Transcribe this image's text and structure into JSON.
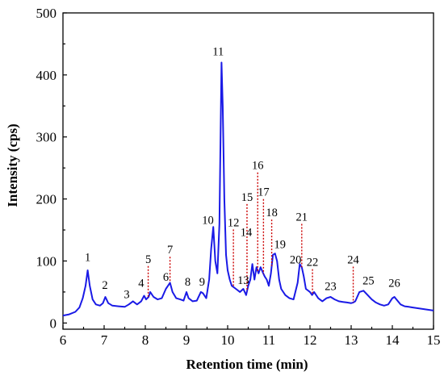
{
  "chart_data": {
    "type": "line",
    "xlabel": "Retention time (min)",
    "ylabel": "Intensity (cps)",
    "xlim": [
      6,
      15
    ],
    "ylim": [
      -10,
      500
    ],
    "x_ticks": [
      "6",
      "7",
      "8",
      "9",
      "10",
      "11",
      "12",
      "13",
      "14",
      "15"
    ],
    "y_ticks": [
      "0",
      "100",
      "200",
      "300",
      "400",
      "500"
    ],
    "series_color": "#1a1ae6",
    "guide_color": "#cc0000",
    "series": [
      {
        "x": [
          6.0,
          6.15,
          6.3,
          6.4,
          6.48,
          6.55,
          6.6,
          6.65,
          6.72,
          6.8,
          6.9,
          6.97,
          7.03,
          7.1,
          7.2,
          7.35,
          7.5,
          7.6,
          7.7,
          7.8,
          7.9,
          7.97,
          8.02,
          8.08,
          8.12,
          8.2,
          8.3,
          8.4,
          8.5,
          8.55,
          8.6,
          8.66,
          8.75,
          8.85,
          8.93,
          9.0,
          9.05,
          9.15,
          9.25,
          9.35,
          9.4,
          9.48,
          9.55,
          9.6,
          9.65,
          9.7,
          9.75,
          9.8,
          9.85,
          9.88,
          9.92,
          9.96,
          10.0,
          10.05,
          10.1,
          10.2,
          10.3,
          10.38,
          10.45,
          10.5,
          10.55,
          10.6,
          10.65,
          10.7,
          10.75,
          10.8,
          10.85,
          10.9,
          10.95,
          11.0,
          11.05,
          11.1,
          11.15,
          11.2,
          11.25,
          11.3,
          11.4,
          11.5,
          11.6,
          11.7,
          11.75,
          11.8,
          11.85,
          11.9,
          12.0,
          12.05,
          12.1,
          12.2,
          12.3,
          12.4,
          12.5,
          12.6,
          12.7,
          12.8,
          12.9,
          13.0,
          13.05,
          13.1,
          13.2,
          13.3,
          13.4,
          13.5,
          13.6,
          13.7,
          13.8,
          13.9,
          14.0,
          14.05,
          14.1,
          14.2,
          14.3,
          14.4,
          14.5,
          14.6,
          14.7,
          14.8,
          15.0
        ],
        "y": [
          12,
          14,
          18,
          25,
          40,
          60,
          85,
          60,
          38,
          30,
          28,
          32,
          42,
          32,
          28,
          27,
          26,
          30,
          35,
          30,
          35,
          44,
          38,
          42,
          50,
          42,
          38,
          40,
          55,
          60,
          65,
          50,
          40,
          38,
          36,
          50,
          40,
          35,
          36,
          50,
          48,
          40,
          70,
          120,
          155,
          100,
          80,
          160,
          420,
          350,
          200,
          110,
          85,
          70,
          60,
          55,
          50,
          55,
          45,
          60,
          70,
          95,
          70,
          90,
          80,
          90,
          82,
          75,
          70,
          60,
          80,
          110,
          112,
          100,
          70,
          55,
          45,
          40,
          38,
          65,
          95,
          90,
          75,
          55,
          50,
          45,
          50,
          40,
          35,
          40,
          42,
          38,
          35,
          34,
          33,
          32,
          33,
          35,
          50,
          52,
          45,
          38,
          33,
          30,
          28,
          30,
          40,
          42,
          38,
          30,
          27,
          26,
          25,
          24,
          23,
          22,
          20
        ]
      }
    ],
    "peaks": [
      {
        "label": "1",
        "x": 6.6,
        "label_y": 100,
        "guide": false
      },
      {
        "label": "2",
        "x": 7.02,
        "label_y": 55,
        "guide": false
      },
      {
        "label": "3",
        "x": 7.55,
        "label_y": 40,
        "guide": false
      },
      {
        "label": "4",
        "x": 7.9,
        "label_y": 58,
        "guide": false
      },
      {
        "label": "5",
        "x": 8.07,
        "label_y": 97,
        "guide": true
      },
      {
        "label": "6",
        "x": 8.5,
        "label_y": 68,
        "guide": false
      },
      {
        "label": "7",
        "x": 8.6,
        "label_y": 112,
        "guide": true
      },
      {
        "label": "8",
        "x": 9.03,
        "label_y": 60,
        "guide": false
      },
      {
        "label": "9",
        "x": 9.38,
        "label_y": 60,
        "guide": false
      },
      {
        "label": "10",
        "x": 9.52,
        "label_y": 160,
        "guide": false
      },
      {
        "label": "11",
        "x": 9.77,
        "label_y": 432,
        "guide": false
      },
      {
        "label": "12",
        "x": 10.14,
        "label_y": 156,
        "guide": true
      },
      {
        "label": "13",
        "x": 10.38,
        "label_y": 63,
        "guide": false
      },
      {
        "label": "14",
        "x": 10.45,
        "label_y": 140,
        "guide": false
      },
      {
        "label": "15",
        "x": 10.47,
        "label_y": 197,
        "guide": true
      },
      {
        "label": "16",
        "x": 10.73,
        "label_y": 248,
        "guide": true
      },
      {
        "label": "17",
        "x": 10.87,
        "label_y": 205,
        "guide": true
      },
      {
        "label": "18",
        "x": 11.07,
        "label_y": 172,
        "guide": true
      },
      {
        "label": "19",
        "x": 11.27,
        "label_y": 121,
        "guide": false
      },
      {
        "label": "20",
        "x": 11.65,
        "label_y": 96,
        "guide": false
      },
      {
        "label": "21",
        "x": 11.8,
        "label_y": 165,
        "guide": true
      },
      {
        "label": "22",
        "x": 12.06,
        "label_y": 92,
        "guide": true
      },
      {
        "label": "23",
        "x": 12.5,
        "label_y": 53,
        "guide": false
      },
      {
        "label": "24",
        "x": 13.05,
        "label_y": 96,
        "guide": true
      },
      {
        "label": "25",
        "x": 13.42,
        "label_y": 62,
        "guide": false
      },
      {
        "label": "26",
        "x": 14.05,
        "label_y": 58,
        "guide": false
      }
    ]
  }
}
